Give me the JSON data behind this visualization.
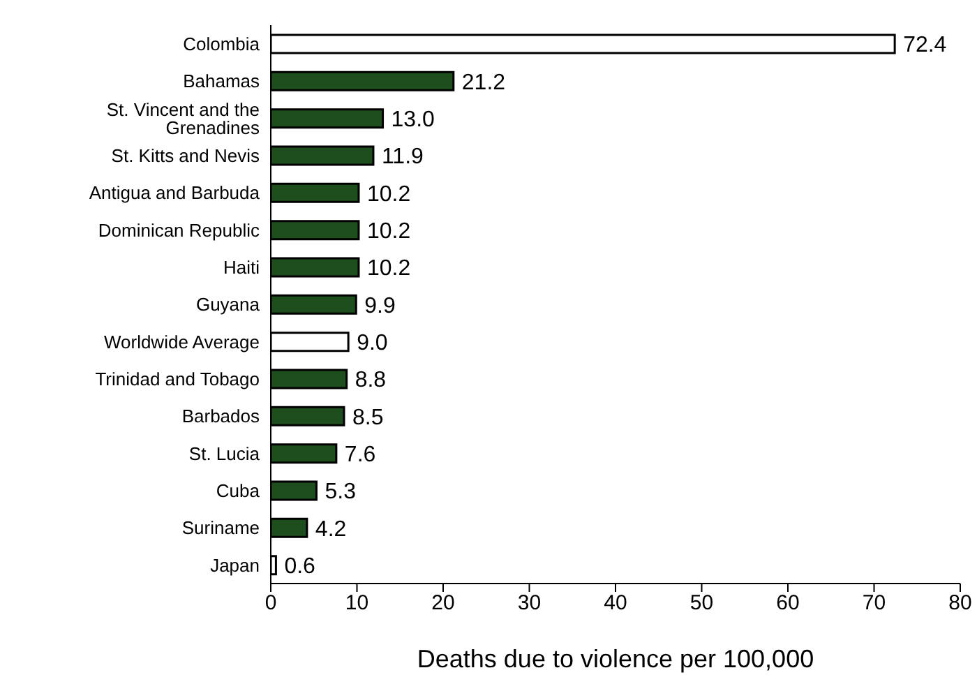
{
  "chart_data": {
    "type": "bar",
    "orientation": "horizontal",
    "xlabel": "Deaths due to violence per 100,000",
    "categories": [
      "Colombia",
      "Bahamas",
      "St. Vincent and the Grenadines",
      "St. Kitts and Nevis",
      "Antigua and Barbuda",
      "Dominican Republic",
      "Haiti",
      "Guyana",
      "Worldwide Average",
      "Trinidad and Tobago",
      "Barbados",
      "St. Lucia",
      "Cuba",
      "Suriname",
      "Japan"
    ],
    "values": [
      72.4,
      21.2,
      13.0,
      11.9,
      10.2,
      10.2,
      10.2,
      9.9,
      9.0,
      8.8,
      8.5,
      7.6,
      5.3,
      4.2,
      0.6
    ],
    "colors": [
      "#ffffff",
      "#1e4d1e",
      "#1e4d1e",
      "#1e4d1e",
      "#1e4d1e",
      "#1e4d1e",
      "#1e4d1e",
      "#1e4d1e",
      "#ffffff",
      "#1e4d1e",
      "#1e4d1e",
      "#1e4d1e",
      "#1e4d1e",
      "#1e4d1e",
      "#ffffff"
    ],
    "value_labels": [
      "72.4",
      "21.2",
      "13.0",
      "11.9",
      "10.2",
      "10.2",
      "10.2",
      "9.9",
      "9.0",
      "8.8",
      "8.5",
      "7.6",
      "5.3",
      "4.2",
      "0.6"
    ],
    "xlim": [
      0,
      80
    ],
    "xticks": [
      0,
      10,
      20,
      30,
      40,
      50,
      60,
      70,
      80
    ],
    "grid": false,
    "legend": false
  }
}
